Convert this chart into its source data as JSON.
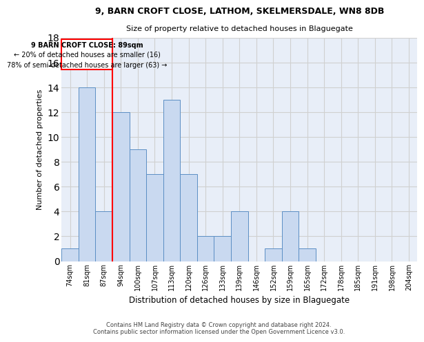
{
  "title1": "9, BARN CROFT CLOSE, LATHOM, SKELMERSDALE, WN8 8DB",
  "title2": "Size of property relative to detached houses in Blaguegate",
  "xlabel": "Distribution of detached houses by size in Blaguegate",
  "ylabel": "Number of detached properties",
  "bin_labels": [
    "74sqm",
    "81sqm",
    "87sqm",
    "94sqm",
    "100sqm",
    "107sqm",
    "113sqm",
    "120sqm",
    "126sqm",
    "133sqm",
    "139sqm",
    "146sqm",
    "152sqm",
    "159sqm",
    "165sqm",
    "172sqm",
    "178sqm",
    "185sqm",
    "191sqm",
    "198sqm",
    "204sqm"
  ],
  "bar_values": [
    1,
    14,
    4,
    12,
    9,
    7,
    13,
    7,
    2,
    2,
    4,
    0,
    1,
    4,
    1,
    0,
    0,
    0,
    0,
    0,
    0
  ],
  "bar_color": "#c9d9f0",
  "bar_edge_color": "#5b8ec4",
  "grid_color": "#d0d0d0",
  "background_color": "#ffffff",
  "ax_background_color": "#e8eef8",
  "red_line_x": 2.5,
  "annotation_line1": "9 BARN CROFT CLOSE: 89sqm",
  "annotation_line2": "← 20% of detached houses are smaller (16)",
  "annotation_line3": "78% of semi-detached houses are larger (63) →",
  "footer1": "Contains HM Land Registry data © Crown copyright and database right 2024.",
  "footer2": "Contains public sector information licensed under the Open Government Licence v3.0.",
  "ylim": [
    0,
    18
  ],
  "yticks": [
    0,
    2,
    4,
    6,
    8,
    10,
    12,
    14,
    16,
    18
  ]
}
